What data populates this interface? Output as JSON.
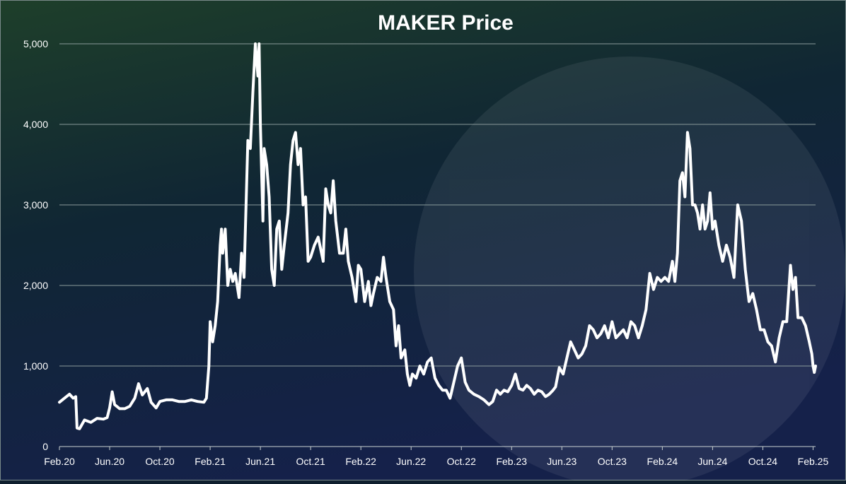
{
  "chart_data": {
    "type": "line",
    "title": "MAKER Price",
    "xlabel": "",
    "ylabel": "",
    "ylim": [
      0,
      5000
    ],
    "y_ticks": [
      {
        "value": 0,
        "label": "0"
      },
      {
        "value": 1000,
        "label": "1,000"
      },
      {
        "value": 2000,
        "label": "2,000"
      },
      {
        "value": 3000,
        "label": "3,000"
      },
      {
        "value": 4000,
        "label": "4,000"
      },
      {
        "value": 5000,
        "label": "5,000"
      }
    ],
    "x_ticks": [
      {
        "value": 0,
        "label": "Feb.20"
      },
      {
        "value": 4,
        "label": "Jun.20"
      },
      {
        "value": 8,
        "label": "Oct.20"
      },
      {
        "value": 12,
        "label": "Feb.21"
      },
      {
        "value": 16,
        "label": "Jun.21"
      },
      {
        "value": 20,
        "label": "Oct.21"
      },
      {
        "value": 24,
        "label": "Feb.22"
      },
      {
        "value": 28,
        "label": "Jun.22"
      },
      {
        "value": 32,
        "label": "Oct.22"
      },
      {
        "value": 36,
        "label": "Feb.23"
      },
      {
        "value": 40,
        "label": "Jun.23"
      },
      {
        "value": 44,
        "label": "Oct.23"
      },
      {
        "value": 48,
        "label": "Feb.24"
      },
      {
        "value": 52,
        "label": "Jun.24"
      },
      {
        "value": 56,
        "label": "Oct.24"
      },
      {
        "value": 60,
        "label": "Feb.25"
      }
    ],
    "xlim": [
      0,
      60.2
    ],
    "x_unit": "months since Feb 2020",
    "grid": true,
    "series": [
      {
        "name": "MAKER Price",
        "color": "#ffffff",
        "points": [
          [
            0,
            550
          ],
          [
            0.4,
            600
          ],
          [
            0.8,
            650
          ],
          [
            1.1,
            600
          ],
          [
            1.3,
            620
          ],
          [
            1.4,
            230
          ],
          [
            1.6,
            220
          ],
          [
            2.0,
            330
          ],
          [
            2.5,
            300
          ],
          [
            3.0,
            350
          ],
          [
            3.5,
            340
          ],
          [
            3.8,
            360
          ],
          [
            4.0,
            480
          ],
          [
            4.2,
            680
          ],
          [
            4.4,
            520
          ],
          [
            4.8,
            470
          ],
          [
            5.2,
            470
          ],
          [
            5.6,
            500
          ],
          [
            6.0,
            600
          ],
          [
            6.3,
            780
          ],
          [
            6.6,
            640
          ],
          [
            7.0,
            720
          ],
          [
            7.3,
            550
          ],
          [
            7.7,
            480
          ],
          [
            8.0,
            560
          ],
          [
            8.5,
            580
          ],
          [
            9.0,
            580
          ],
          [
            9.5,
            560
          ],
          [
            10.0,
            560
          ],
          [
            10.5,
            580
          ],
          [
            11.0,
            560
          ],
          [
            11.5,
            550
          ],
          [
            11.7,
            600
          ],
          [
            11.9,
            1000
          ],
          [
            12.0,
            1550
          ],
          [
            12.2,
            1300
          ],
          [
            12.4,
            1500
          ],
          [
            12.6,
            1800
          ],
          [
            12.8,
            2500
          ],
          [
            12.9,
            2700
          ],
          [
            13.0,
            2400
          ],
          [
            13.2,
            2700
          ],
          [
            13.4,
            2000
          ],
          [
            13.6,
            2200
          ],
          [
            13.8,
            2050
          ],
          [
            14.0,
            2150
          ],
          [
            14.3,
            1850
          ],
          [
            14.5,
            2400
          ],
          [
            14.7,
            2100
          ],
          [
            15.0,
            3800
          ],
          [
            15.2,
            3700
          ],
          [
            15.4,
            4400
          ],
          [
            15.6,
            5000
          ],
          [
            15.8,
            4600
          ],
          [
            15.9,
            5000
          ],
          [
            16.0,
            4000
          ],
          [
            16.2,
            2800
          ],
          [
            16.3,
            3700
          ],
          [
            16.5,
            3500
          ],
          [
            16.7,
            3100
          ],
          [
            16.9,
            2200
          ],
          [
            17.1,
            2000
          ],
          [
            17.3,
            2700
          ],
          [
            17.5,
            2800
          ],
          [
            17.7,
            2200
          ],
          [
            17.9,
            2500
          ],
          [
            18.2,
            2900
          ],
          [
            18.4,
            3500
          ],
          [
            18.6,
            3800
          ],
          [
            18.8,
            3900
          ],
          [
            19.0,
            3500
          ],
          [
            19.2,
            3700
          ],
          [
            19.4,
            3000
          ],
          [
            19.6,
            3100
          ],
          [
            19.8,
            2300
          ],
          [
            20.0,
            2350
          ],
          [
            20.3,
            2500
          ],
          [
            20.6,
            2600
          ],
          [
            21.0,
            2300
          ],
          [
            21.2,
            3200
          ],
          [
            21.4,
            3000
          ],
          [
            21.6,
            2900
          ],
          [
            21.8,
            3300
          ],
          [
            22.0,
            2800
          ],
          [
            22.3,
            2400
          ],
          [
            22.6,
            2400
          ],
          [
            22.8,
            2700
          ],
          [
            23.0,
            2300
          ],
          [
            23.3,
            2100
          ],
          [
            23.6,
            1800
          ],
          [
            23.8,
            2250
          ],
          [
            24.0,
            2200
          ],
          [
            24.3,
            1800
          ],
          [
            24.6,
            2050
          ],
          [
            24.8,
            1750
          ],
          [
            25.0,
            1900
          ],
          [
            25.3,
            2100
          ],
          [
            25.6,
            2050
          ],
          [
            25.8,
            2350
          ],
          [
            26.0,
            2100
          ],
          [
            26.3,
            1800
          ],
          [
            26.6,
            1700
          ],
          [
            26.8,
            1250
          ],
          [
            27.0,
            1500
          ],
          [
            27.2,
            1100
          ],
          [
            27.5,
            1200
          ],
          [
            27.7,
            900
          ],
          [
            27.9,
            760
          ],
          [
            28.1,
            900
          ],
          [
            28.4,
            850
          ],
          [
            28.7,
            1000
          ],
          [
            29.0,
            900
          ],
          [
            29.3,
            1050
          ],
          [
            29.6,
            1100
          ],
          [
            29.9,
            850
          ],
          [
            30.2,
            760
          ],
          [
            30.5,
            700
          ],
          [
            30.8,
            700
          ],
          [
            31.1,
            600
          ],
          [
            31.4,
            800
          ],
          [
            31.7,
            1000
          ],
          [
            32.0,
            1100
          ],
          [
            32.3,
            800
          ],
          [
            32.6,
            700
          ],
          [
            33.0,
            650
          ],
          [
            33.4,
            620
          ],
          [
            33.8,
            580
          ],
          [
            34.2,
            520
          ],
          [
            34.5,
            560
          ],
          [
            34.8,
            700
          ],
          [
            35.1,
            650
          ],
          [
            35.4,
            700
          ],
          [
            35.7,
            680
          ],
          [
            36.0,
            760
          ],
          [
            36.3,
            900
          ],
          [
            36.6,
            720
          ],
          [
            36.9,
            700
          ],
          [
            37.2,
            760
          ],
          [
            37.5,
            720
          ],
          [
            37.8,
            650
          ],
          [
            38.1,
            700
          ],
          [
            38.4,
            680
          ],
          [
            38.7,
            620
          ],
          [
            39.0,
            650
          ],
          [
            39.3,
            700
          ],
          [
            39.5,
            740
          ],
          [
            39.8,
            980
          ],
          [
            40.1,
            900
          ],
          [
            40.4,
            1100
          ],
          [
            40.7,
            1300
          ],
          [
            41.0,
            1200
          ],
          [
            41.3,
            1100
          ],
          [
            41.6,
            1150
          ],
          [
            41.9,
            1250
          ],
          [
            42.2,
            1500
          ],
          [
            42.5,
            1450
          ],
          [
            42.8,
            1350
          ],
          [
            43.1,
            1400
          ],
          [
            43.4,
            1500
          ],
          [
            43.7,
            1350
          ],
          [
            44.0,
            1550
          ],
          [
            44.3,
            1350
          ],
          [
            44.6,
            1400
          ],
          [
            44.9,
            1450
          ],
          [
            45.2,
            1350
          ],
          [
            45.5,
            1550
          ],
          [
            45.8,
            1500
          ],
          [
            46.1,
            1350
          ],
          [
            46.4,
            1500
          ],
          [
            46.7,
            1700
          ],
          [
            47.0,
            2150
          ],
          [
            47.3,
            1950
          ],
          [
            47.6,
            2100
          ],
          [
            47.9,
            2050
          ],
          [
            48.2,
            2100
          ],
          [
            48.5,
            2050
          ],
          [
            48.8,
            2300
          ],
          [
            49.0,
            2050
          ],
          [
            49.2,
            2400
          ],
          [
            49.4,
            3300
          ],
          [
            49.6,
            3400
          ],
          [
            49.8,
            3100
          ],
          [
            50.0,
            3900
          ],
          [
            50.2,
            3700
          ],
          [
            50.4,
            3000
          ],
          [
            50.6,
            3000
          ],
          [
            50.8,
            2900
          ],
          [
            51.0,
            2700
          ],
          [
            51.2,
            3000
          ],
          [
            51.4,
            2700
          ],
          [
            51.6,
            2800
          ],
          [
            51.8,
            3150
          ],
          [
            52.0,
            2700
          ],
          [
            52.2,
            2800
          ],
          [
            52.5,
            2500
          ],
          [
            52.8,
            2300
          ],
          [
            53.1,
            2500
          ],
          [
            53.4,
            2350
          ],
          [
            53.7,
            2100
          ],
          [
            54.0,
            3000
          ],
          [
            54.3,
            2800
          ],
          [
            54.6,
            2200
          ],
          [
            54.9,
            1800
          ],
          [
            55.2,
            1900
          ],
          [
            55.5,
            1700
          ],
          [
            55.8,
            1450
          ],
          [
            56.1,
            1450
          ],
          [
            56.4,
            1300
          ],
          [
            56.7,
            1250
          ],
          [
            57.0,
            1050
          ],
          [
            57.3,
            1350
          ],
          [
            57.6,
            1550
          ],
          [
            57.9,
            1550
          ],
          [
            58.2,
            2250
          ],
          [
            58.4,
            1950
          ],
          [
            58.6,
            2100
          ],
          [
            58.8,
            1600
          ],
          [
            59.1,
            1600
          ],
          [
            59.4,
            1500
          ],
          [
            59.7,
            1300
          ],
          [
            59.9,
            1150
          ],
          [
            60.0,
            1000
          ],
          [
            60.1,
            920
          ],
          [
            60.2,
            1000
          ]
        ]
      }
    ]
  }
}
